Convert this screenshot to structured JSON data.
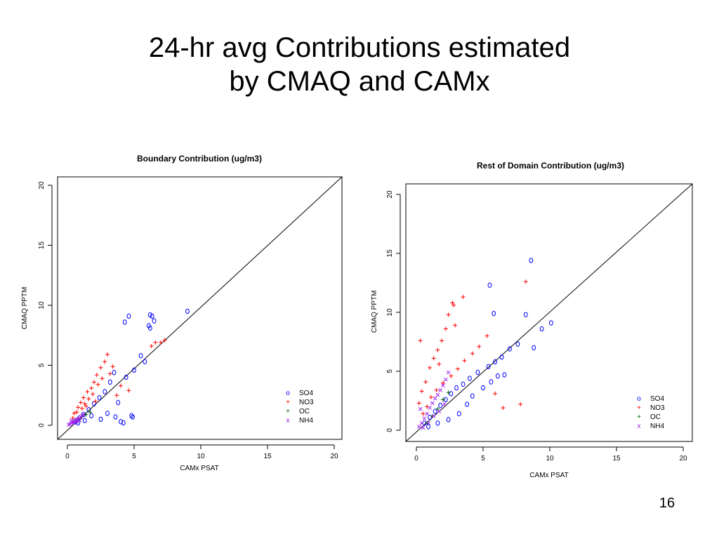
{
  "slide": {
    "title_line1": "24-hr avg Contributions estimated",
    "title_line2": "by CMAQ and CAMx",
    "number": "16"
  },
  "chart_data": [
    {
      "type": "scatter",
      "title": "Boundary Contribution (ug/m3)",
      "xlabel": "CAMx PSAT",
      "ylabel": "CMAQ PPTM",
      "xlim": [
        0,
        20
      ],
      "ylim": [
        0,
        20
      ],
      "xticks": [
        "0",
        "5",
        "10",
        "15",
        "20"
      ],
      "yticks": [
        "0",
        "5",
        "10",
        "15",
        "20"
      ],
      "reference_line": "y = x",
      "legend_position": "bottom-right",
      "series": [
        {
          "name": "SO4",
          "symbol": "o",
          "color": "#0000ff",
          "x": [
            4.3,
            4.6,
            6.2,
            6.35,
            6.5,
            6.1,
            6.2,
            9.0,
            5.0,
            4.4,
            3.5,
            3.2,
            2.8,
            2.4,
            2.0,
            1.6,
            1.2,
            0.9,
            0.6,
            4.0,
            3.6,
            3.0,
            2.5,
            1.8,
            1.3,
            0.8,
            5.5,
            5.8,
            4.8,
            4.2,
            3.8,
            4.9
          ],
          "y": [
            8.6,
            9.1,
            9.2,
            9.1,
            8.7,
            8.3,
            8.1,
            9.5,
            4.6,
            4.0,
            4.4,
            3.6,
            2.8,
            2.3,
            1.8,
            1.3,
            0.9,
            0.6,
            0.3,
            0.3,
            0.7,
            1.0,
            0.5,
            0.8,
            0.4,
            0.2,
            5.8,
            5.3,
            0.8,
            0.2,
            1.9,
            0.7
          ]
        },
        {
          "name": "NO3",
          "symbol": "+",
          "color": "#ff0000",
          "x": [
            3.0,
            2.8,
            2.5,
            2.2,
            2.0,
            1.8,
            1.5,
            1.2,
            1.0,
            0.8,
            0.5,
            3.4,
            3.2,
            2.6,
            2.3,
            1.9,
            1.6,
            1.3,
            1.1,
            0.7,
            0.4,
            6.3,
            6.6,
            7.0,
            7.3,
            4.6,
            4.0,
            3.7,
            2.1,
            1.4
          ],
          "y": [
            5.9,
            5.3,
            4.8,
            4.2,
            3.6,
            3.1,
            2.8,
            2.3,
            1.9,
            1.5,
            1.0,
            4.9,
            4.3,
            3.9,
            3.4,
            2.6,
            2.2,
            1.8,
            1.4,
            1.1,
            0.6,
            6.6,
            6.9,
            6.9,
            7.1,
            2.9,
            3.3,
            2.5,
            2.0,
            1.6
          ]
        },
        {
          "name": "OC",
          "symbol": "+",
          "color": "#006400",
          "x": [
            0.5,
            0.8,
            1.0,
            1.4,
            1.7
          ],
          "y": [
            0.3,
            0.5,
            0.6,
            0.9,
            1.1
          ]
        },
        {
          "name": "NH4",
          "symbol": "x",
          "color": "#a020f0",
          "x": [
            0.1,
            0.2,
            0.3,
            0.4,
            0.5,
            0.6,
            0.7,
            0.8,
            0.9,
            1.0,
            1.1,
            1.2,
            0.3,
            0.5,
            0.7,
            0.9
          ],
          "y": [
            0.05,
            0.1,
            0.2,
            0.25,
            0.3,
            0.4,
            0.5,
            0.5,
            0.6,
            0.7,
            0.8,
            0.9,
            0.4,
            0.2,
            0.3,
            0.4
          ]
        }
      ]
    },
    {
      "type": "scatter",
      "title": "Rest of Domain Contribution (ug/m3)",
      "xlabel": "CAMx PSAT",
      "ylabel": "CMAQ PPTM",
      "xlim": [
        0,
        20
      ],
      "ylim": [
        0,
        20
      ],
      "xticks": [
        "0",
        "5",
        "10",
        "15",
        "20"
      ],
      "yticks": [
        "0",
        "5",
        "10",
        "15",
        "20"
      ],
      "reference_line": "y = x",
      "legend_position": "bottom-right",
      "series": [
        {
          "name": "SO4",
          "symbol": "o",
          "color": "#0000ff",
          "x": [
            8.6,
            5.5,
            5.8,
            8.2,
            9.4,
            10.1,
            8.8,
            7.6,
            7.0,
            6.4,
            5.9,
            5.4,
            4.6,
            4.0,
            3.5,
            3.0,
            2.6,
            2.2,
            1.8,
            1.4,
            1.0,
            0.6,
            6.6,
            5.0,
            4.2,
            3.2,
            2.4,
            1.6,
            0.9,
            5.6,
            6.1,
            3.8
          ],
          "y": [
            14.4,
            12.3,
            9.9,
            9.8,
            8.6,
            9.1,
            7.0,
            7.3,
            6.9,
            6.2,
            5.8,
            5.4,
            4.9,
            4.4,
            3.9,
            3.6,
            3.1,
            2.6,
            2.1,
            1.6,
            1.1,
            0.6,
            4.7,
            3.6,
            2.9,
            1.4,
            0.9,
            0.6,
            0.3,
            4.1,
            4.6,
            2.2
          ]
        },
        {
          "name": "NO3",
          "symbol": "+",
          "color": "#ff0000",
          "x": [
            3.5,
            2.8,
            2.7,
            2.4,
            2.2,
            1.9,
            1.6,
            1.3,
            1.0,
            0.7,
            0.4,
            0.2,
            8.2,
            5.3,
            4.7,
            4.2,
            3.6,
            3.1,
            2.6,
            2.0,
            1.5,
            1.1,
            0.8,
            0.5,
            6.5,
            7.8,
            5.9,
            0.3,
            2.9,
            1.7
          ],
          "y": [
            11.3,
            10.6,
            10.8,
            9.8,
            8.6,
            7.6,
            6.8,
            6.1,
            5.3,
            4.1,
            3.3,
            2.3,
            12.6,
            8.0,
            7.1,
            6.5,
            5.9,
            5.2,
            4.6,
            4.0,
            3.4,
            2.8,
            2.0,
            1.4,
            1.9,
            2.2,
            3.1,
            7.6,
            8.9,
            5.6
          ]
        },
        {
          "name": "OC",
          "symbol": "+",
          "color": "#006400",
          "x": [
            0.8,
            1.2,
            1.6,
            2.0,
            2.4
          ],
          "y": [
            0.6,
            1.2,
            1.8,
            2.6,
            3.2
          ]
        },
        {
          "name": "NH4",
          "symbol": "x",
          "color": "#a020f0",
          "x": [
            0.2,
            0.4,
            0.6,
            0.8,
            1.0,
            1.2,
            1.4,
            1.6,
            1.8,
            2.0,
            2.2,
            2.4,
            0.5,
            0.9,
            1.3,
            1.7,
            2.1,
            0.3
          ],
          "y": [
            0.3,
            0.6,
            1.0,
            1.4,
            1.9,
            2.3,
            2.7,
            3.0,
            3.4,
            3.8,
            4.3,
            4.9,
            0.2,
            0.6,
            1.2,
            1.6,
            2.2,
            1.8
          ]
        }
      ]
    }
  ]
}
